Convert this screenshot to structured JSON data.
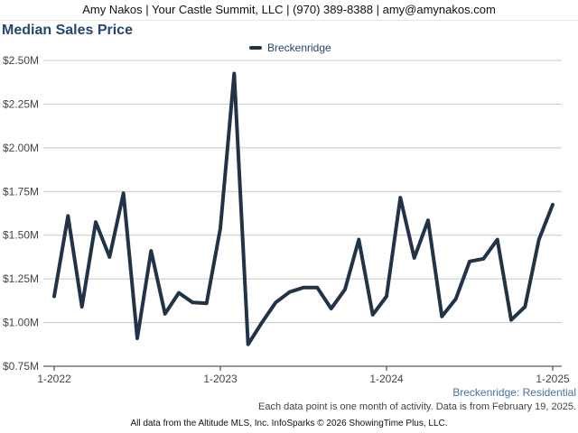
{
  "header": {
    "contact": "Amy Nakos | Your Castle Summit, LLC | (970) 389-8388 | amy@amynakos.com"
  },
  "chart_data": {
    "type": "line",
    "title": "Median Sales Price",
    "subtitle": "Breckenridge: Residential",
    "note": "Each data point is one month of activity. Data is from February 19, 2025.",
    "footer": "All data from the Altitude MLS, Inc. InfoSparks © 2026 ShowingTime Plus, LLC.",
    "legend_position": "top-center",
    "grid": true,
    "ylim": [
      750000,
      2500000
    ],
    "y_ticks": [
      {
        "value": 750000,
        "label": "$0.75M"
      },
      {
        "value": 1000000,
        "label": "$1.00M"
      },
      {
        "value": 1250000,
        "label": "$1.25M"
      },
      {
        "value": 1500000,
        "label": "$1.50M"
      },
      {
        "value": 1750000,
        "label": "$1.75M"
      },
      {
        "value": 2000000,
        "label": "$2.00M"
      },
      {
        "value": 2250000,
        "label": "$2.25M"
      },
      {
        "value": 2500000,
        "label": "$2.50M"
      }
    ],
    "x_ticks": [
      {
        "index": 0,
        "label": "1-2022"
      },
      {
        "index": 12,
        "label": "1-2023"
      },
      {
        "index": 24,
        "label": "1-2024"
      },
      {
        "index": 36,
        "label": "1-2025"
      }
    ],
    "series": [
      {
        "name": "Breckenridge",
        "color": "#223247",
        "x": [
          "2022-01",
          "2022-02",
          "2022-03",
          "2022-04",
          "2022-05",
          "2022-06",
          "2022-07",
          "2022-08",
          "2022-09",
          "2022-10",
          "2022-11",
          "2022-12",
          "2023-01",
          "2023-02",
          "2023-03",
          "2023-04",
          "2023-05",
          "2023-06",
          "2023-07",
          "2023-08",
          "2023-09",
          "2023-10",
          "2023-11",
          "2023-12",
          "2024-01",
          "2024-02",
          "2024-03",
          "2024-04",
          "2024-05",
          "2024-06",
          "2024-07",
          "2024-08",
          "2024-09",
          "2024-10",
          "2024-11",
          "2024-12",
          "2025-01"
        ],
        "values": [
          1150000,
          1610000,
          1090000,
          1575000,
          1375000,
          1740000,
          910000,
          1410000,
          1050000,
          1170000,
          1115000,
          1110000,
          1540000,
          2425000,
          875000,
          1000000,
          1115000,
          1175000,
          1200000,
          1200000,
          1080000,
          1190000,
          1475000,
          1045000,
          1150000,
          1715000,
          1370000,
          1585000,
          1035000,
          1135000,
          1350000,
          1365000,
          1475000,
          1015000,
          1090000,
          1475000,
          1675000
        ]
      }
    ]
  }
}
